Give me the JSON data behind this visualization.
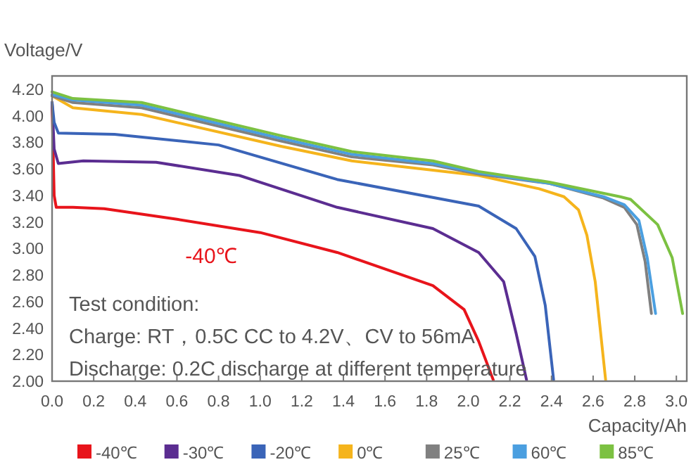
{
  "chart_data": {
    "type": "line",
    "ylabel": "Voltage/V",
    "xlabel": "Capacity/Ah",
    "xlim": [
      0,
      3.05
    ],
    "ylim": [
      2.0,
      4.3
    ],
    "xticks": [
      {
        "value": 0,
        "label": "0.0"
      },
      {
        "value": 0.2,
        "label": "0.2"
      },
      {
        "value": 0.4,
        "label": "0.4"
      },
      {
        "value": 0.6,
        "label": "0.6"
      },
      {
        "value": 0.8,
        "label": "0.8"
      },
      {
        "value": 1.0,
        "label": "1.0"
      },
      {
        "value": 1.2,
        "label": "1.2"
      },
      {
        "value": 1.4,
        "label": "1.4"
      },
      {
        "value": 1.6,
        "label": "1.6"
      },
      {
        "value": 1.8,
        "label": "1.8"
      },
      {
        "value": 2.0,
        "label": "2.0"
      },
      {
        "value": 2.2,
        "label": "2.2"
      },
      {
        "value": 2.4,
        "label": "2.4"
      },
      {
        "value": 2.6,
        "label": "2.6"
      },
      {
        "value": 2.8,
        "label": "2.8"
      },
      {
        "value": 3.0,
        "label": "3.0"
      }
    ],
    "yticks": [
      {
        "value": 2.0,
        "label": "2.00"
      },
      {
        "value": 2.2,
        "label": "2.20"
      },
      {
        "value": 2.4,
        "label": "2.40"
      },
      {
        "value": 2.6,
        "label": "2.60"
      },
      {
        "value": 2.8,
        "label": "2.80"
      },
      {
        "value": 3.0,
        "label": "3.00"
      },
      {
        "value": 3.2,
        "label": "3.20"
      },
      {
        "value": 3.4,
        "label": "3.40"
      },
      {
        "value": 3.6,
        "label": "3.60"
      },
      {
        "value": 3.8,
        "label": "3.80"
      },
      {
        "value": 4.0,
        "label": "4.00"
      },
      {
        "value": 4.2,
        "label": "4.20"
      }
    ],
    "grid": false,
    "legend": "bottom",
    "marker": "none",
    "line_style": "solid",
    "series": [
      {
        "name": "-40℃",
        "color": "#e8141b",
        "x": [
          0,
          0.01,
          0.02,
          0.1,
          0.25,
          0.6,
          1.0,
          1.37,
          1.83,
          1.98,
          2.05,
          2.12
        ],
        "values": [
          4.1,
          3.4,
          3.31,
          3.31,
          3.3,
          3.22,
          3.12,
          2.97,
          2.72,
          2.54,
          2.3,
          2.01
        ]
      },
      {
        "name": "-30℃",
        "color": "#5b2d91",
        "x": [
          0,
          0.01,
          0.03,
          0.15,
          0.5,
          0.9,
          1.37,
          1.83,
          2.05,
          2.17,
          2.23,
          2.28
        ],
        "values": [
          4.1,
          3.75,
          3.64,
          3.66,
          3.65,
          3.55,
          3.31,
          3.15,
          2.97,
          2.75,
          2.36,
          2.01
        ]
      },
      {
        "name": "-20℃",
        "color": "#3a64b8",
        "x": [
          0,
          0.01,
          0.03,
          0.3,
          0.8,
          1.37,
          2.05,
          2.23,
          2.32,
          2.37,
          2.41
        ],
        "values": [
          4.1,
          3.95,
          3.87,
          3.86,
          3.78,
          3.52,
          3.32,
          3.15,
          2.94,
          2.57,
          2.01
        ]
      },
      {
        "name": "0℃",
        "color": "#f5b41c",
        "x": [
          0,
          0.1,
          0.43,
          1.1,
          1.44,
          1.83,
          2.05,
          2.34,
          2.46,
          2.53,
          2.57,
          2.61,
          2.66
        ],
        "values": [
          4.15,
          4.06,
          4.01,
          3.77,
          3.66,
          3.59,
          3.55,
          3.45,
          3.39,
          3.29,
          3.1,
          2.75,
          2.01
        ]
      },
      {
        "name": "25℃",
        "color": "#808080",
        "x": [
          0,
          0.1,
          0.43,
          1.1,
          1.44,
          1.83,
          2.05,
          2.39,
          2.65,
          2.75,
          2.81,
          2.85,
          2.88
        ],
        "values": [
          4.15,
          4.1,
          4.06,
          3.81,
          3.69,
          3.63,
          3.56,
          3.49,
          3.38,
          3.31,
          3.18,
          2.9,
          2.51
        ]
      },
      {
        "name": "60℃",
        "color": "#4b9fe0",
        "x": [
          0,
          0.1,
          0.43,
          1.1,
          1.44,
          1.83,
          2.05,
          2.39,
          2.65,
          2.75,
          2.82,
          2.86,
          2.9
        ],
        "values": [
          4.16,
          4.12,
          4.08,
          3.83,
          3.71,
          3.64,
          3.57,
          3.49,
          3.39,
          3.33,
          3.21,
          2.93,
          2.51
        ]
      },
      {
        "name": "85℃",
        "color": "#7cc142",
        "x": [
          0,
          0.1,
          0.43,
          1.1,
          1.44,
          1.83,
          2.05,
          2.39,
          2.73,
          2.78,
          2.91,
          2.98,
          3.03
        ],
        "values": [
          4.18,
          4.13,
          4.1,
          3.85,
          3.73,
          3.66,
          3.58,
          3.5,
          3.39,
          3.37,
          3.18,
          2.93,
          2.51
        ]
      }
    ],
    "annotations": [
      "-40℃",
      "Test condition:",
      "Charge: RT，0.5C CC to  4.2V、CV to 56mA",
      "Discharge: 0.2C discharge at different temperature"
    ]
  }
}
